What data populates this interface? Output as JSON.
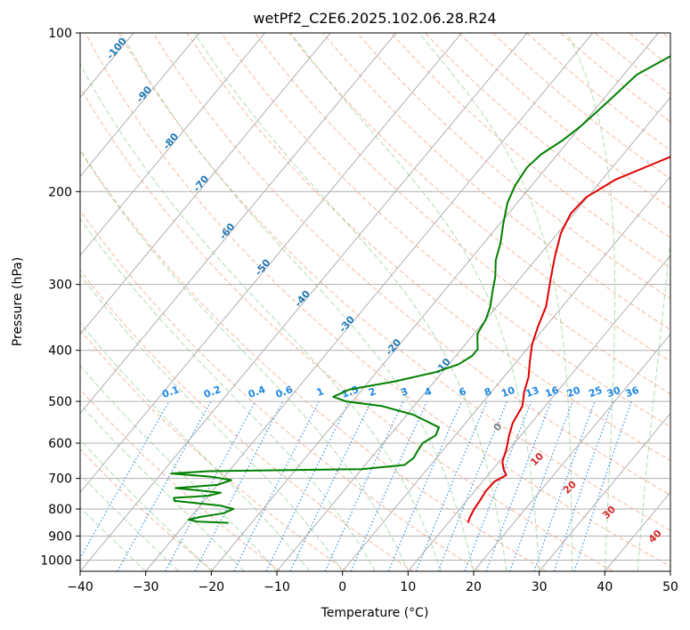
{
  "chart_data": {
    "type": "line",
    "subtype": "skew-t log-p diagram",
    "title": "wetPf2_C2E6.2025.102.06.28.R24",
    "xlabel": "Temperature (°C)",
    "ylabel": "Pressure (hPa)",
    "xlim": [
      -40,
      50
    ],
    "ylim": [
      1050,
      100
    ],
    "y_scale": "log",
    "grid": true,
    "x_ticks": [
      -40,
      -30,
      -20,
      -10,
      0,
      10,
      20,
      30,
      40,
      50
    ],
    "x_tick_labels": [
      "−40",
      "−30",
      "−20",
      "−10",
      "0",
      "10",
      "20",
      "30",
      "40",
      "50"
    ],
    "y_ticks": [
      100,
      200,
      300,
      400,
      500,
      600,
      700,
      800,
      900,
      1000
    ],
    "y_tick_labels": [
      "100",
      "200",
      "300",
      "400",
      "500",
      "600",
      "700",
      "800",
      "900",
      "1000"
    ],
    "isotherm_labels": [
      -100,
      -90,
      -80,
      -70,
      -60,
      -50,
      -40,
      -30,
      -20,
      -10
    ],
    "mixing_ratio_labels": [
      "0.1",
      "0.2",
      "0.4",
      "0.6",
      "1",
      "1.5",
      "2",
      "3",
      "4",
      "6",
      "8",
      "10",
      "13",
      "16",
      "20",
      "25",
      "30",
      "36"
    ],
    "moist_adiabat_labels": [
      "0",
      "10",
      "20",
      "30",
      "40"
    ],
    "colors": {
      "temperature": "#e00000",
      "dewpoint": "#008000",
      "isotherm_label": "#1f77b4",
      "mixing_ratio": "#1e88e5",
      "moist_adiabat_label": "#d62728",
      "dry_adiabat": "#f4a582",
      "moist_adiabat": "#8fcf8f",
      "grid": "#b0b0b0"
    },
    "series": [
      {
        "name": "",
        "color": "#e00000",
        "points": [
          [
            13.0,
            850
          ],
          [
            12.6,
            830
          ],
          [
            12.2,
            800
          ],
          [
            12.0,
            770
          ],
          [
            11.7,
            740
          ],
          [
            11.8,
            710
          ],
          [
            12.8,
            690
          ],
          [
            11.5,
            670
          ],
          [
            10.5,
            650
          ],
          [
            9.5,
            615
          ],
          [
            8.2,
            580
          ],
          [
            7.2,
            550
          ],
          [
            6.5,
            510
          ],
          [
            5.0,
            480
          ],
          [
            3.8,
            450
          ],
          [
            2.0,
            420
          ],
          [
            0.2,
            390
          ],
          [
            -1.2,
            360
          ],
          [
            -2.5,
            330
          ],
          [
            -5.5,
            290
          ],
          [
            -7.5,
            265
          ],
          [
            -9.5,
            240
          ],
          [
            -10.5,
            220
          ],
          [
            -10.2,
            205
          ],
          [
            -8.0,
            190
          ],
          [
            -3.5,
            175
          ],
          [
            1.5,
            160
          ],
          [
            4.5,
            148
          ],
          [
            10.5,
            130
          ],
          [
            16.5,
            115
          ],
          [
            23.0,
            100
          ]
        ]
      },
      {
        "name": "",
        "color": "#008000",
        "points": [
          [
            -23.5,
            850
          ],
          [
            -28.5,
            845
          ],
          [
            -30.0,
            838
          ],
          [
            -28.5,
            828
          ],
          [
            -25.5,
            815
          ],
          [
            -24.5,
            800
          ],
          [
            -27.0,
            788
          ],
          [
            -34.5,
            772
          ],
          [
            -35.0,
            762
          ],
          [
            -30.0,
            755
          ],
          [
            -28.5,
            745
          ],
          [
            -32.0,
            738
          ],
          [
            -36.0,
            730
          ],
          [
            -30.0,
            720
          ],
          [
            -28.5,
            705
          ],
          [
            -32.0,
            695
          ],
          [
            -38.5,
            685
          ],
          [
            -33.0,
            678
          ],
          [
            -10.0,
            672
          ],
          [
            -4.0,
            660
          ],
          [
            -3.5,
            640
          ],
          [
            -3.8,
            620
          ],
          [
            -4.0,
            600
          ],
          [
            -3.0,
            580
          ],
          [
            -3.5,
            560
          ],
          [
            -9.0,
            530
          ],
          [
            -15.0,
            510
          ],
          [
            -21.0,
            500
          ],
          [
            -23.5,
            490
          ],
          [
            -22.0,
            475
          ],
          [
            -16.0,
            458
          ],
          [
            -11.0,
            440
          ],
          [
            -8.5,
            425
          ],
          [
            -7.5,
            410
          ],
          [
            -7.5,
            398
          ],
          [
            -8.5,
            385
          ],
          [
            -9.5,
            372
          ],
          [
            -10.0,
            350
          ],
          [
            -11.0,
            330
          ],
          [
            -12.5,
            310
          ],
          [
            -14.0,
            290
          ],
          [
            -16.0,
            270
          ],
          [
            -17.5,
            250
          ],
          [
            -19.5,
            230
          ],
          [
            -21.5,
            210
          ],
          [
            -22.5,
            195
          ],
          [
            -23.0,
            180
          ],
          [
            -22.5,
            170
          ],
          [
            -21.0,
            160
          ],
          [
            -20.0,
            150
          ],
          [
            -19.0,
            135
          ],
          [
            -18.0,
            120
          ],
          [
            -15.0,
            110
          ],
          [
            -11.5,
            100
          ]
        ]
      }
    ]
  }
}
